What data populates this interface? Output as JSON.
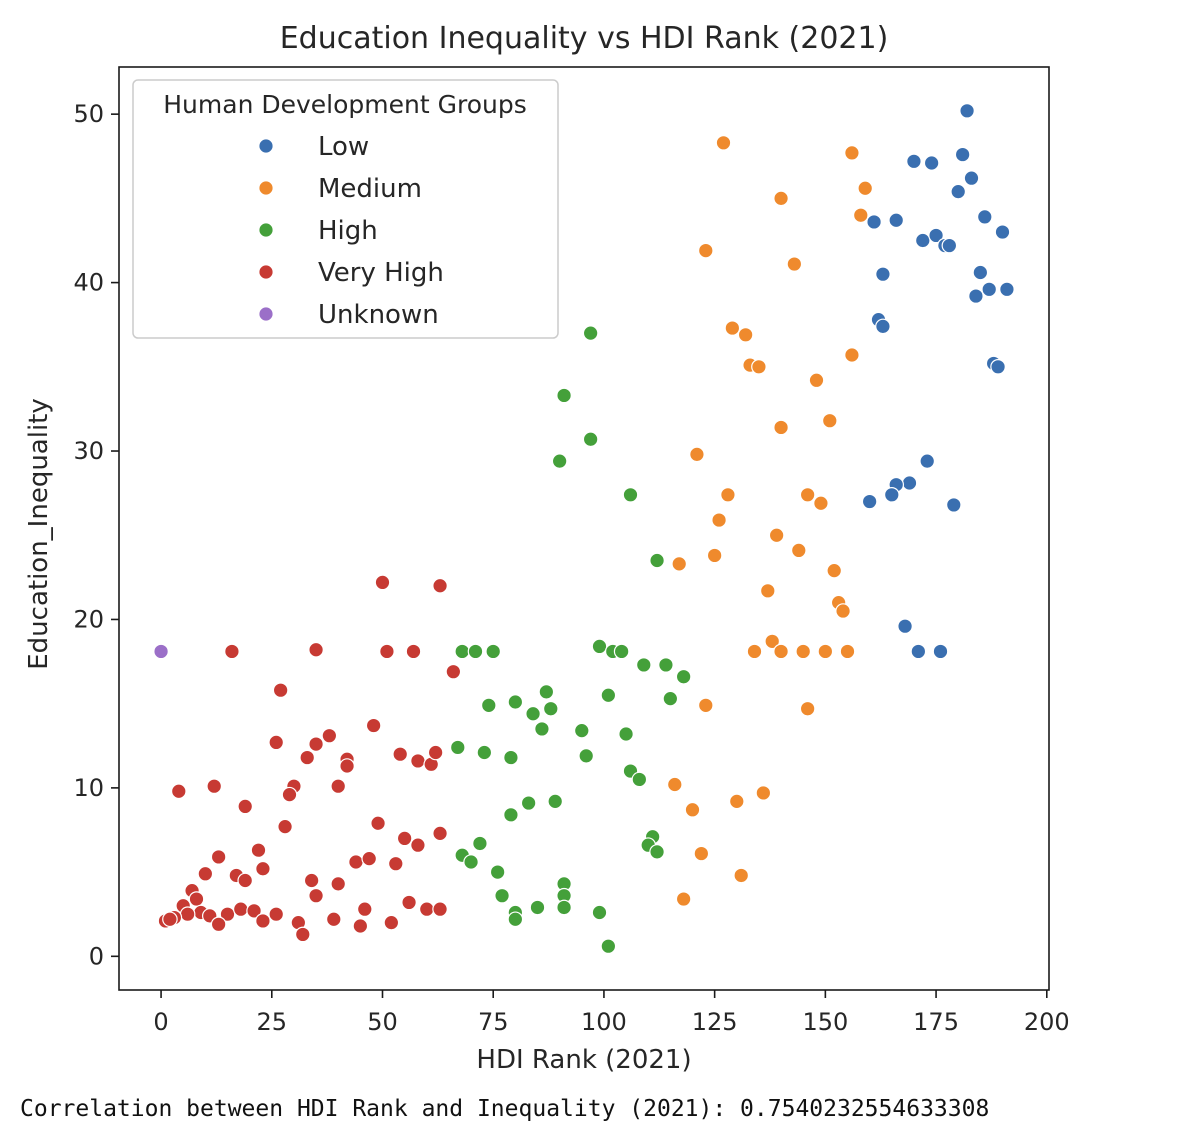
{
  "output": {
    "correlation_line": "Correlation between HDI Rank and Inequality (2021): 0.7540232554633308"
  },
  "colors": {
    "Low": "#3a6fb0",
    "Medium": "#ef8a2d",
    "High": "#44a03a",
    "Very High": "#c73a33",
    "Unknown": "#9b6fc8"
  },
  "chart_data": {
    "type": "scatter",
    "title": "Education Inequality vs HDI Rank (2021)",
    "xlabel": "HDI Rank (2021)",
    "ylabel": "Education_Inequality",
    "xlim": [
      -9.5,
      200.5
    ],
    "ylim": [
      -2,
      52.8
    ],
    "x_ticks": [
      0,
      25,
      50,
      75,
      100,
      125,
      150,
      175,
      200
    ],
    "y_ticks": [
      0,
      10,
      20,
      30,
      40,
      50
    ],
    "grid": false,
    "legend": {
      "title": "Human Development Groups",
      "placement": "top-left",
      "entries": [
        "Low",
        "Medium",
        "High",
        "Very High",
        "Unknown"
      ]
    },
    "series": [
      {
        "name": "Low",
        "points": [
          [
            182,
            50.2
          ],
          [
            170,
            47.2
          ],
          [
            174,
            47.1
          ],
          [
            181,
            47.6
          ],
          [
            183,
            46.2
          ],
          [
            180,
            45.4
          ],
          [
            186,
            43.9
          ],
          [
            161,
            43.6
          ],
          [
            166,
            43.7
          ],
          [
            190,
            43.0
          ],
          [
            172,
            42.5
          ],
          [
            175,
            42.8
          ],
          [
            177,
            42.2
          ],
          [
            178,
            42.2
          ],
          [
            163,
            40.5
          ],
          [
            185,
            40.6
          ],
          [
            184,
            39.2
          ],
          [
            187,
            39.6
          ],
          [
            191,
            39.6
          ],
          [
            162,
            37.8
          ],
          [
            163,
            37.4
          ],
          [
            188,
            35.2
          ],
          [
            189,
            35.0
          ],
          [
            173,
            29.4
          ],
          [
            169,
            28.1
          ],
          [
            166,
            28.0
          ],
          [
            165,
            27.4
          ],
          [
            160,
            27.0
          ],
          [
            179,
            26.8
          ],
          [
            168,
            19.6
          ],
          [
            171,
            18.1
          ],
          [
            176,
            18.1
          ]
        ]
      },
      {
        "name": "Medium",
        "points": [
          [
            127,
            48.3
          ],
          [
            156,
            47.7
          ],
          [
            159,
            45.6
          ],
          [
            140,
            45.0
          ],
          [
            158,
            44.0
          ],
          [
            123,
            41.9
          ],
          [
            143,
            41.1
          ],
          [
            129,
            37.3
          ],
          [
            132,
            36.9
          ],
          [
            133,
            35.1
          ],
          [
            135,
            35.0
          ],
          [
            156,
            35.7
          ],
          [
            148,
            34.2
          ],
          [
            151,
            31.8
          ],
          [
            140,
            31.4
          ],
          [
            121,
            29.8
          ],
          [
            128,
            27.4
          ],
          [
            146,
            27.4
          ],
          [
            149,
            26.9
          ],
          [
            126,
            25.9
          ],
          [
            139,
            25.0
          ],
          [
            144,
            24.1
          ],
          [
            125,
            23.8
          ],
          [
            117,
            23.3
          ],
          [
            152,
            22.9
          ],
          [
            137,
            21.7
          ],
          [
            153,
            21.0
          ],
          [
            154,
            20.5
          ],
          [
            138,
            18.7
          ],
          [
            134,
            18.1
          ],
          [
            140,
            18.1
          ],
          [
            145,
            18.1
          ],
          [
            150,
            18.1
          ],
          [
            155,
            18.1
          ],
          [
            118,
            16.6
          ],
          [
            123,
            14.9
          ],
          [
            146,
            14.7
          ],
          [
            136,
            9.7
          ],
          [
            116,
            10.2
          ],
          [
            130,
            9.2
          ],
          [
            120,
            8.7
          ],
          [
            122,
            6.1
          ],
          [
            131,
            4.8
          ],
          [
            118,
            3.4
          ]
        ]
      },
      {
        "name": "High",
        "points": [
          [
            97,
            37.0
          ],
          [
            91,
            33.3
          ],
          [
            97,
            30.7
          ],
          [
            90,
            29.4
          ],
          [
            106,
            27.4
          ],
          [
            112,
            23.5
          ],
          [
            99,
            18.4
          ],
          [
            102,
            18.1
          ],
          [
            104,
            18.1
          ],
          [
            68,
            18.1
          ],
          [
            71,
            18.1
          ],
          [
            75,
            18.1
          ],
          [
            109,
            17.3
          ],
          [
            114,
            17.3
          ],
          [
            118,
            16.6
          ],
          [
            87,
            15.7
          ],
          [
            115,
            15.3
          ],
          [
            101,
            15.5
          ],
          [
            74,
            14.9
          ],
          [
            80,
            15.1
          ],
          [
            84,
            14.4
          ],
          [
            88,
            14.7
          ],
          [
            86,
            13.5
          ],
          [
            95,
            13.4
          ],
          [
            105,
            13.2
          ],
          [
            67,
            12.4
          ],
          [
            73,
            12.1
          ],
          [
            79,
            11.8
          ],
          [
            96,
            11.9
          ],
          [
            106,
            11.0
          ],
          [
            108,
            10.5
          ],
          [
            83,
            9.1
          ],
          [
            89,
            9.2
          ],
          [
            79,
            8.4
          ],
          [
            111,
            7.1
          ],
          [
            110,
            6.6
          ],
          [
            112,
            6.2
          ],
          [
            72,
            6.7
          ],
          [
            68,
            6.0
          ],
          [
            70,
            5.6
          ],
          [
            76,
            5.0
          ],
          [
            91,
            4.3
          ],
          [
            91,
            3.6
          ],
          [
            77,
            3.6
          ],
          [
            85,
            2.9
          ],
          [
            91,
            2.9
          ],
          [
            99,
            2.6
          ],
          [
            80,
            2.6
          ],
          [
            80,
            2.2
          ],
          [
            101,
            0.6
          ]
        ]
      },
      {
        "name": "Very High",
        "points": [
          [
            50,
            22.2
          ],
          [
            63,
            22.0
          ],
          [
            16,
            18.1
          ],
          [
            35,
            18.2
          ],
          [
            51,
            18.1
          ],
          [
            57,
            18.1
          ],
          [
            66,
            16.9
          ],
          [
            27,
            15.8
          ],
          [
            48,
            13.7
          ],
          [
            38,
            13.1
          ],
          [
            26,
            12.7
          ],
          [
            35,
            12.6
          ],
          [
            33,
            11.8
          ],
          [
            42,
            11.7
          ],
          [
            42,
            11.3
          ],
          [
            54,
            12.0
          ],
          [
            58,
            11.6
          ],
          [
            61,
            11.4
          ],
          [
            62,
            12.1
          ],
          [
            4,
            9.8
          ],
          [
            12,
            10.1
          ],
          [
            30,
            10.1
          ],
          [
            29,
            9.6
          ],
          [
            40,
            10.1
          ],
          [
            19,
            8.9
          ],
          [
            49,
            7.9
          ],
          [
            28,
            7.7
          ],
          [
            63,
            7.3
          ],
          [
            55,
            7.0
          ],
          [
            58,
            6.6
          ],
          [
            22,
            6.3
          ],
          [
            13,
            5.9
          ],
          [
            23,
            5.2
          ],
          [
            44,
            5.6
          ],
          [
            47,
            5.8
          ],
          [
            53,
            5.5
          ],
          [
            10,
            4.9
          ],
          [
            17,
            4.8
          ],
          [
            19,
            4.5
          ],
          [
            34,
            4.5
          ],
          [
            40,
            4.3
          ],
          [
            7,
            3.9
          ],
          [
            8,
            3.4
          ],
          [
            35,
            3.6
          ],
          [
            56,
            3.2
          ],
          [
            5,
            3.0
          ],
          [
            9,
            2.6
          ],
          [
            15,
            2.5
          ],
          [
            18,
            2.8
          ],
          [
            21,
            2.7
          ],
          [
            26,
            2.5
          ],
          [
            46,
            2.8
          ],
          [
            60,
            2.8
          ],
          [
            63,
            2.8
          ],
          [
            6,
            2.5
          ],
          [
            11,
            2.4
          ],
          [
            3,
            2.3
          ],
          [
            1,
            2.1
          ],
          [
            2,
            2.2
          ],
          [
            23,
            2.1
          ],
          [
            31,
            2.0
          ],
          [
            39,
            2.2
          ],
          [
            52,
            2.0
          ],
          [
            13,
            1.9
          ],
          [
            45,
            1.8
          ],
          [
            32,
            1.3
          ]
        ]
      },
      {
        "name": "Unknown",
        "points": [
          [
            0,
            18.1
          ]
        ]
      }
    ]
  }
}
